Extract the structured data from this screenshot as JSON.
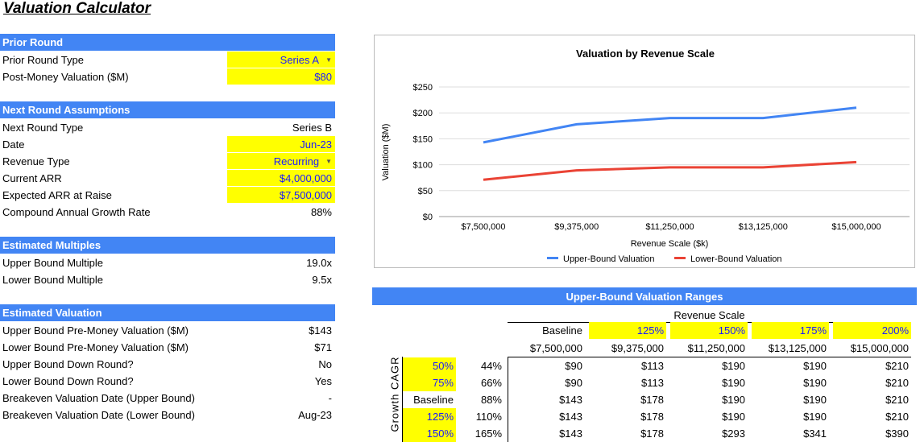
{
  "title": "Valuation Calculator",
  "prior": {
    "header": "Prior Round",
    "rows": [
      {
        "label": "Prior Round Type",
        "value": "Series A",
        "input": true,
        "dropdown": true
      },
      {
        "label": "Post-Money Valuation ($M)",
        "value": "$80",
        "input": true
      }
    ]
  },
  "next": {
    "header": "Next Round Assumptions",
    "rows": [
      {
        "label": "Next Round Type",
        "value": "Series B"
      },
      {
        "label": "Date",
        "value": "Jun-23",
        "input": true
      },
      {
        "label": "Revenue Type",
        "value": "Recurring",
        "input": true,
        "dropdown": true
      },
      {
        "label": "Current ARR",
        "value": "$4,000,000",
        "input": true
      },
      {
        "label": "Expected ARR at Raise",
        "value": "$7,500,000",
        "input": true
      },
      {
        "label": "Compound Annual Growth Rate",
        "value": "88%"
      }
    ]
  },
  "multiples": {
    "header": "Estimated Multiples",
    "rows": [
      {
        "label": "Upper Bound Multiple",
        "value": "19.0x"
      },
      {
        "label": "Lower Bound Multiple",
        "value": "9.5x"
      }
    ]
  },
  "valuation": {
    "header": "Estimated Valuation",
    "rows": [
      {
        "label": "Upper Bound Pre-Money Valuation ($M)",
        "value": "$143"
      },
      {
        "label": "Lower Bound Pre-Money Valuation ($M)",
        "value": "$71"
      },
      {
        "label": "Upper Bound Down Round?",
        "value": "No"
      },
      {
        "label": "Lower Bound Down Round?",
        "value": "Yes"
      },
      {
        "label": "Breakeven Valuation Date (Upper Bound)",
        "value": "-"
      },
      {
        "label": "Breakeven Valuation Date (Lower Bound)",
        "value": "Aug-23"
      }
    ]
  },
  "chart_data": {
    "type": "line",
    "title": "Valuation by Revenue Scale",
    "xlabel": "Revenue Scale ($k)",
    "ylabel": "Valuation ($M)",
    "categories": [
      "$7,500,000",
      "$9,375,000",
      "$11,250,000",
      "$13,125,000",
      "$15,000,000"
    ],
    "yticks": [
      "$0",
      "$50",
      "$100",
      "$150",
      "$200",
      "$250"
    ],
    "ylim": [
      0,
      250
    ],
    "grid": true,
    "legend": "bottom",
    "series": [
      {
        "name": "Upper-Bound Valuation",
        "color": "#4285f4",
        "values": [
          143,
          178,
          190,
          190,
          210
        ]
      },
      {
        "name": "Lower-Bound Valuation",
        "color": "#ea4335",
        "values": [
          71,
          89,
          95,
          95,
          105
        ]
      }
    ]
  },
  "table": {
    "header": "Upper-Bound Valuation Ranges",
    "col_group": "Revenue Scale",
    "row_group": "Growth CAGR",
    "col_pcts": [
      "Baseline",
      "125%",
      "150%",
      "175%",
      "200%"
    ],
    "col_values": [
      "$7,500,000",
      "$9,375,000",
      "$11,250,000",
      "$13,125,000",
      "$15,000,000"
    ],
    "rows": [
      {
        "pct": "50%",
        "cagr": "44%",
        "cells": [
          "$90",
          "$113",
          "$190",
          "$190",
          "$210"
        ]
      },
      {
        "pct": "75%",
        "cagr": "66%",
        "cells": [
          "$90",
          "$113",
          "$190",
          "$190",
          "$210"
        ]
      },
      {
        "pct": "Baseline",
        "cagr": "88%",
        "cells": [
          "$143",
          "$178",
          "$190",
          "$190",
          "$210"
        ]
      },
      {
        "pct": "125%",
        "cagr": "110%",
        "cells": [
          "$143",
          "$178",
          "$190",
          "$190",
          "$210"
        ]
      },
      {
        "pct": "150%",
        "cagr": "165%",
        "cells": [
          "$143",
          "$178",
          "$293",
          "$341",
          "$390"
        ]
      }
    ]
  }
}
